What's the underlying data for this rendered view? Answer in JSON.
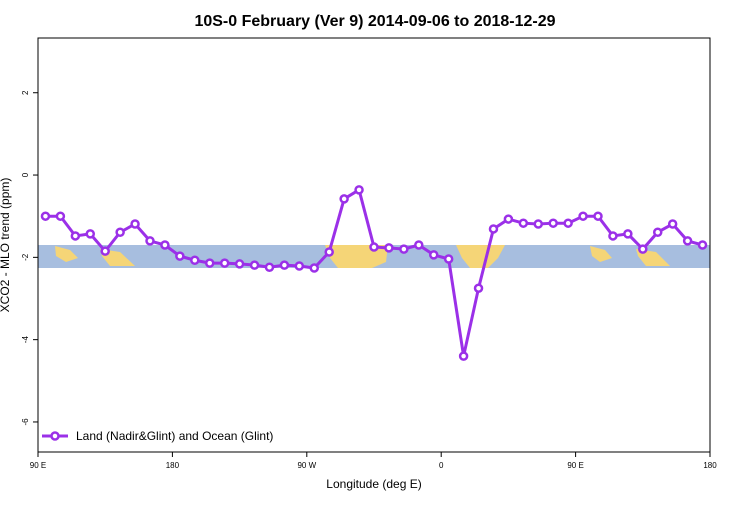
{
  "chart_data": {
    "type": "line",
    "title": "10S-0 February (Ver 9)   2014-09-06 to 2018-12-29",
    "x_label": "Longitude (deg E)",
    "y_label": "XCO2 - MLO trend (ppm)",
    "x": [
      95,
      105,
      115,
      125,
      135,
      145,
      155,
      165,
      175,
      185,
      195,
      205,
      215,
      225,
      235,
      245,
      255,
      265,
      275,
      285,
      295,
      305,
      315,
      325,
      335,
      345,
      355,
      365,
      375,
      385,
      395,
      405,
      415,
      425,
      435,
      445,
      455,
      465,
      475,
      485,
      495,
      505,
      515,
      525,
      535
    ],
    "series": [
      {
        "name": "Land (Nadir&Glint) and Ocean (Glint)",
        "color": "#9b30e8",
        "values": [
          -1.0,
          -1.0,
          -1.48,
          -1.43,
          -1.85,
          -1.39,
          -1.19,
          -1.6,
          -1.7,
          -1.97,
          -2.07,
          -2.14,
          -2.14,
          -2.16,
          -2.19,
          -2.24,
          -2.19,
          -2.21,
          -2.26,
          -1.87,
          -0.58,
          -0.36,
          -1.75,
          -1.77,
          -1.8,
          -1.7,
          -1.94,
          -2.04,
          -4.4,
          -2.75,
          -1.31,
          -1.07,
          -1.17,
          -1.19,
          -1.17,
          -1.17,
          -1.0,
          -1.0,
          -1.48,
          -1.43,
          -1.8,
          -1.39,
          -1.19,
          -1.6,
          -1.7
        ]
      }
    ],
    "xlim": [
      90,
      540
    ],
    "xticks": [
      {
        "value": 90,
        "label": "90 E"
      },
      180,
      {
        "value": 270,
        "label": "90 W"
      },
      {
        "value": 360,
        "label": "0"
      },
      {
        "value": 450,
        "label": "90 E"
      },
      {
        "value": 540,
        "label": "180"
      }
    ],
    "ylim": [
      -6.73,
      3.33
    ],
    "yticks": [
      2,
      0,
      -2,
      -4,
      -6
    ],
    "legend": "bottomleft"
  }
}
